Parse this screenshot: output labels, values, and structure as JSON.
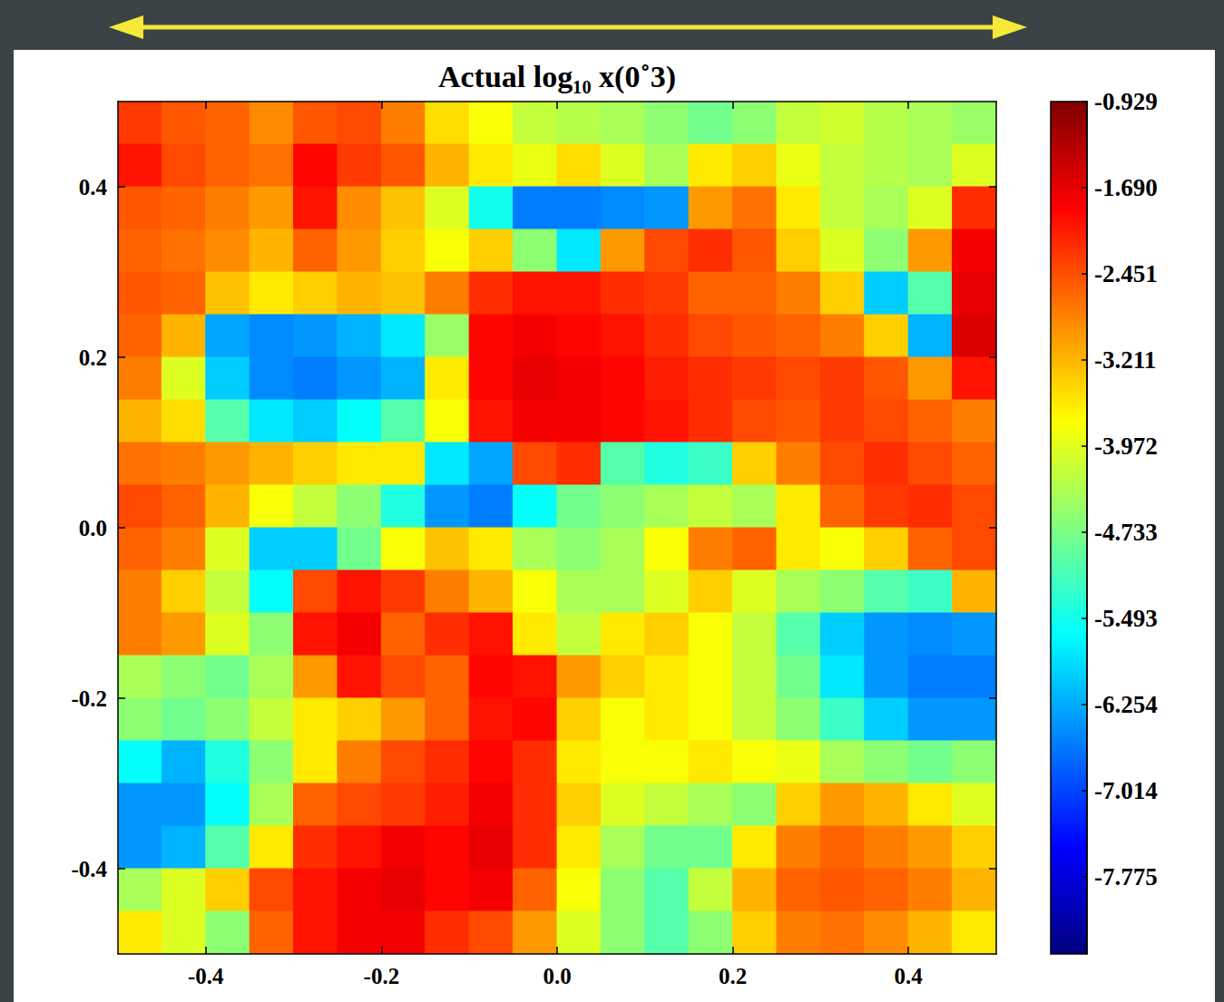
{
  "chart_data": {
    "type": "heatmap",
    "title": "Actual log₁₀ x(0˚3)",
    "xlim": [
      -0.5,
      0.5
    ],
    "ylim": [
      -0.5,
      0.5
    ],
    "xticks": [
      -0.4,
      -0.2,
      {
        "value": 0,
        "label": "0.0"
      },
      0.2,
      0.4
    ],
    "yticks": [
      -0.4,
      -0.2,
      {
        "value": 0,
        "label": "0.0"
      },
      0.2,
      0.4
    ],
    "x": [
      -0.475,
      -0.425,
      -0.375,
      -0.325,
      -0.275,
      -0.225,
      -0.175,
      -0.125,
      -0.075,
      -0.025,
      0.025,
      0.075,
      0.125,
      0.175,
      0.225,
      0.275,
      0.325,
      0.375,
      0.425,
      0.475
    ],
    "y": [
      0.475,
      0.425,
      0.375,
      0.325,
      0.275,
      0.225,
      0.175,
      0.125,
      0.075,
      0.025,
      -0.025,
      -0.075,
      -0.125,
      -0.175,
      -0.225,
      -0.275,
      -0.325,
      -0.375,
      -0.425,
      -0.475
    ],
    "values": [
      [
        -2.3,
        -2.5,
        -2.6,
        -2.9,
        -2.5,
        -2.4,
        -2.8,
        -3.5,
        -3.8,
        -4.2,
        -4.3,
        -4.4,
        -4.6,
        -4.8,
        -4.6,
        -4.2,
        -4.1,
        -4.3,
        -4.4,
        -4.5
      ],
      [
        -2.0,
        -2.4,
        -2.6,
        -2.7,
        -1.9,
        -2.3,
        -2.5,
        -3.2,
        -3.6,
        -3.9,
        -3.5,
        -4.0,
        -4.4,
        -3.6,
        -3.4,
        -3.9,
        -4.2,
        -4.3,
        -4.4,
        -4.0
      ],
      [
        -2.5,
        -2.6,
        -2.8,
        -3.0,
        -2.0,
        -2.9,
        -3.3,
        -4.0,
        -5.5,
        -6.6,
        -6.6,
        -6.5,
        -6.4,
        -3.0,
        -2.7,
        -3.6,
        -4.2,
        -4.4,
        -4.0,
        -2.2
      ],
      [
        -2.6,
        -2.7,
        -2.9,
        -3.2,
        -2.6,
        -3.0,
        -3.4,
        -3.8,
        -3.4,
        -4.6,
        -5.8,
        -3.0,
        -2.4,
        -2.2,
        -2.5,
        -3.4,
        -4.0,
        -4.6,
        -3.0,
        -1.8
      ],
      [
        -2.5,
        -2.6,
        -3.3,
        -3.6,
        -3.4,
        -3.2,
        -3.3,
        -2.8,
        -2.2,
        -2.0,
        -2.0,
        -2.2,
        -2.3,
        -2.6,
        -2.6,
        -2.8,
        -3.4,
        -6.0,
        -5.0,
        -1.7
      ],
      [
        -2.6,
        -3.2,
        -6.3,
        -6.5,
        -6.4,
        -6.2,
        -5.8,
        -4.5,
        -1.9,
        -1.8,
        -1.9,
        -2.0,
        -2.2,
        -2.4,
        -2.5,
        -2.6,
        -2.8,
        -3.4,
        -6.2,
        -1.6
      ],
      [
        -2.8,
        -4.0,
        -6.0,
        -6.5,
        -6.6,
        -6.4,
        -6.2,
        -3.6,
        -1.9,
        -1.7,
        -1.8,
        -1.9,
        -2.1,
        -2.2,
        -2.3,
        -2.4,
        -2.3,
        -2.5,
        -3.0,
        -2.0
      ],
      [
        -3.2,
        -3.5,
        -5.0,
        -5.8,
        -6.0,
        -5.6,
        -5.0,
        -3.8,
        -2.0,
        -1.8,
        -1.8,
        -1.9,
        -2.0,
        -2.2,
        -2.4,
        -2.5,
        -2.3,
        -2.4,
        -2.6,
        -2.8
      ],
      [
        -2.7,
        -2.8,
        -3.0,
        -3.2,
        -3.4,
        -3.6,
        -3.6,
        -5.8,
        -6.3,
        -2.4,
        -2.2,
        -5.0,
        -5.4,
        -5.2,
        -3.4,
        -2.8,
        -2.4,
        -2.2,
        -2.4,
        -2.6
      ],
      [
        -2.4,
        -2.6,
        -3.2,
        -3.8,
        -4.2,
        -4.6,
        -5.4,
        -6.4,
        -6.6,
        -5.6,
        -4.8,
        -4.6,
        -4.4,
        -4.2,
        -4.4,
        -3.6,
        -2.6,
        -2.3,
        -2.2,
        -2.4
      ],
      [
        -2.6,
        -2.8,
        -4.0,
        -6.0,
        -6.0,
        -4.8,
        -3.8,
        -3.3,
        -3.6,
        -4.4,
        -4.6,
        -4.4,
        -3.8,
        -2.8,
        -2.6,
        -3.6,
        -3.8,
        -3.4,
        -2.6,
        -2.4
      ],
      [
        -2.8,
        -3.4,
        -4.2,
        -5.6,
        -2.4,
        -2.0,
        -2.3,
        -2.8,
        -3.2,
        -3.8,
        -4.4,
        -4.4,
        -4.0,
        -3.4,
        -4.0,
        -4.4,
        -4.6,
        -5.0,
        -5.2,
        -3.2
      ],
      [
        -2.8,
        -3.0,
        -4.0,
        -4.6,
        -2.0,
        -1.8,
        -2.6,
        -2.2,
        -2.0,
        -3.6,
        -4.2,
        -3.6,
        -3.4,
        -3.8,
        -4.2,
        -5.0,
        -6.0,
        -6.4,
        -6.5,
        -6.4
      ],
      [
        -4.4,
        -4.6,
        -4.8,
        -4.4,
        -3.0,
        -2.0,
        -2.4,
        -2.6,
        -1.9,
        -2.0,
        -3.0,
        -3.4,
        -3.6,
        -3.8,
        -4.2,
        -4.8,
        -5.8,
        -6.4,
        -6.6,
        -6.6
      ],
      [
        -4.6,
        -4.8,
        -4.6,
        -4.2,
        -3.6,
        -3.4,
        -3.0,
        -2.6,
        -2.0,
        -1.9,
        -3.4,
        -3.8,
        -3.6,
        -3.8,
        -4.2,
        -4.6,
        -5.2,
        -6.0,
        -6.4,
        -6.4
      ],
      [
        -5.6,
        -6.2,
        -5.4,
        -4.6,
        -3.6,
        -2.8,
        -2.4,
        -2.2,
        -1.9,
        -2.2,
        -3.6,
        -3.8,
        -3.8,
        -3.6,
        -3.8,
        -3.9,
        -4.4,
        -4.6,
        -4.8,
        -4.6
      ],
      [
        -6.4,
        -6.4,
        -5.6,
        -4.4,
        -2.6,
        -2.4,
        -2.3,
        -2.1,
        -1.8,
        -2.2,
        -3.4,
        -4.0,
        -4.2,
        -4.4,
        -4.6,
        -3.4,
        -3.0,
        -3.2,
        -3.6,
        -4.0
      ],
      [
        -6.4,
        -6.2,
        -5.0,
        -3.6,
        -2.2,
        -2.0,
        -1.8,
        -1.9,
        -1.7,
        -2.2,
        -3.6,
        -4.4,
        -4.8,
        -4.8,
        -3.6,
        -2.8,
        -2.6,
        -2.8,
        -3.0,
        -3.4
      ],
      [
        -4.4,
        -4.0,
        -3.4,
        -2.4,
        -2.0,
        -1.8,
        -1.7,
        -1.9,
        -1.8,
        -2.6,
        -3.8,
        -4.6,
        -5.0,
        -4.2,
        -3.2,
        -2.6,
        -2.5,
        -2.6,
        -2.8,
        -3.2
      ],
      [
        -3.6,
        -4.0,
        -4.6,
        -2.6,
        -2.0,
        -1.8,
        -1.8,
        -2.2,
        -2.4,
        -3.0,
        -4.0,
        -4.6,
        -5.0,
        -4.6,
        -3.4,
        -2.8,
        -2.7,
        -2.9,
        -3.2,
        -3.6
      ]
    ],
    "colorbar": {
      "range": [
        -8.46,
        -0.929
      ],
      "ticks": [
        -0.929,
        {
          "value": -1.69,
          "label": "-1.690"
        },
        -2.451,
        -3.211,
        -3.972,
        -4.733,
        -5.493,
        -6.254,
        -7.014,
        -7.775
      ]
    }
  }
}
